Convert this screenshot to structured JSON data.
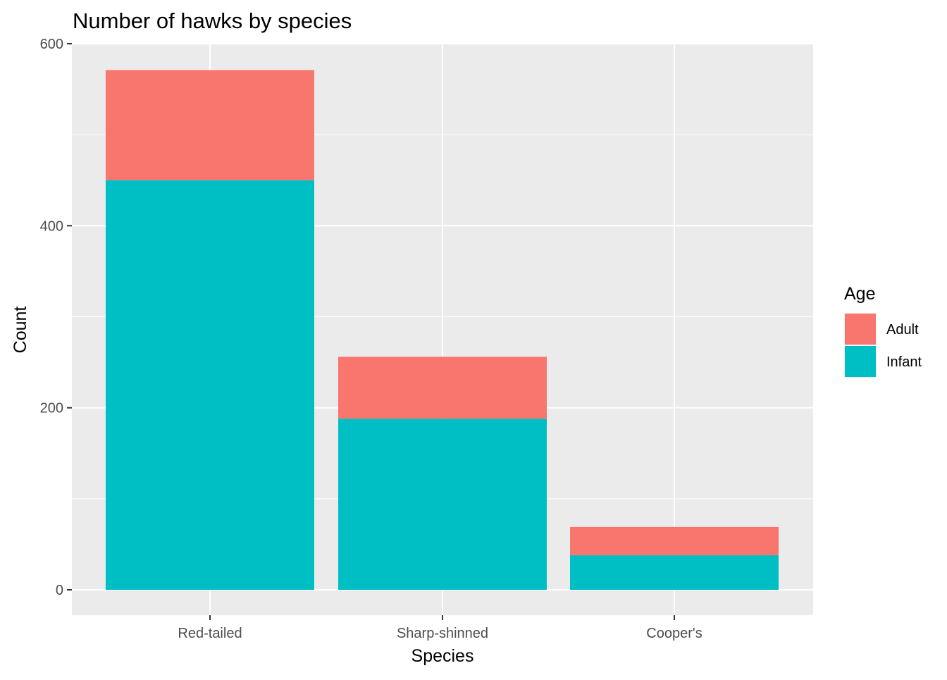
{
  "chart_data": {
    "type": "bar",
    "stacked": true,
    "title": "Number of hawks by species",
    "xlabel": "Species",
    "ylabel": "Count",
    "categories": [
      "Red-tailed",
      "Sharp-shinned",
      "Cooper's"
    ],
    "series": [
      {
        "name": "Adult",
        "values": [
          121,
          68,
          31
        ],
        "color": "#F8766D"
      },
      {
        "name": "Infant",
        "values": [
          450,
          188,
          38
        ],
        "color": "#00BFC4"
      }
    ],
    "stack_order_bottom_to_top": [
      "Infant",
      "Adult"
    ],
    "ylim": [
      -28,
      600
    ],
    "yticks": [
      0,
      200,
      400,
      600
    ],
    "grid": true,
    "legend": {
      "title": "Age",
      "position": "right",
      "items": [
        "Adult",
        "Infant"
      ]
    },
    "panel_background": "#EBEBEB",
    "grid_color": "#FFFFFF"
  }
}
